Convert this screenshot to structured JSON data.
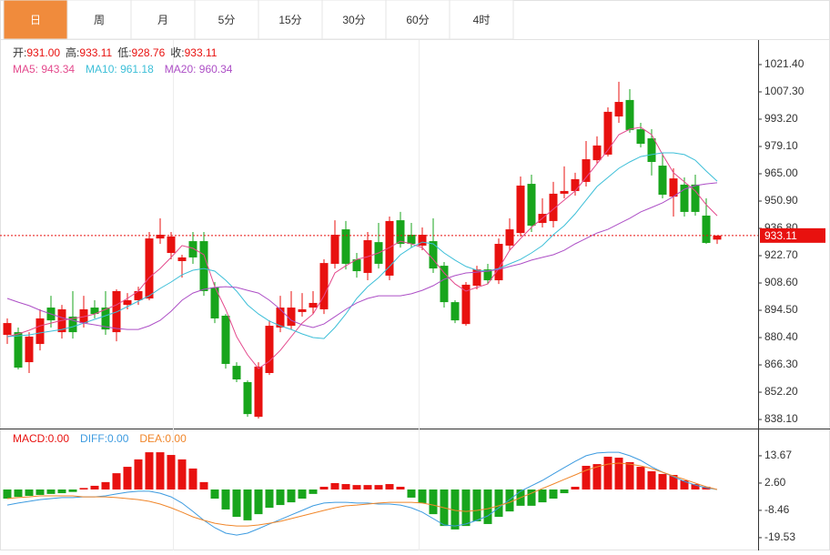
{
  "tabs": [
    "日",
    "周",
    "月",
    "5分",
    "15分",
    "30分",
    "60分",
    "4时"
  ],
  "active_tab": 0,
  "chart_data": [
    {
      "type": "candlestick",
      "ohlc_header": [
        {
          "label": "开:",
          "value": "931.00"
        },
        {
          "label": "高:",
          "value": "933.11"
        },
        {
          "label": "低:",
          "value": "928.76"
        },
        {
          "label": "收:",
          "value": "933.11"
        }
      ],
      "up_color": "#e8110f",
      "down_color": "#18a51c",
      "open": [
        881.8,
        883.2,
        867.7,
        877.1,
        895.9,
        883.2,
        891.2,
        887.9,
        895.9,
        895.9,
        883.2,
        897.3,
        899.7,
        900.6,
        931.6,
        924.1,
        919.9,
        930.2,
        930.2,
        906.3,
        891.7,
        865.8,
        857.4,
        839.5,
        862.1,
        885.6,
        886.5,
        893.6,
        895.9,
        895.0,
        918.5,
        936.3,
        920.8,
        913.8,
        929.7,
        912.4,
        941.0,
        933.5,
        927.9,
        930.2,
        917.5,
        898.7,
        887.4,
        907.2,
        915.6,
        910.0,
        927.9,
        934.4,
        959.8,
        939.6,
        940.6,
        954.7,
        956.1,
        960.8,
        972.0,
        974.9,
        994.6,
        1003.1,
        988.0,
        983.3,
        969.2,
        953.2,
        959.4,
        959.4,
        943.4,
        931.0
      ],
      "high": [
        890.3,
        885.6,
        883.2,
        895.0,
        902.0,
        897.3,
        904.4,
        902.0,
        899.7,
        904.4,
        905.3,
        903.4,
        906.7,
        934.9,
        942.0,
        934.9,
        923.2,
        934.9,
        934.9,
        909.1,
        892.6,
        867.7,
        858.3,
        867.7,
        889.3,
        902.0,
        904.4,
        903.4,
        904.4,
        920.8,
        941.0,
        940.6,
        924.1,
        934.9,
        939.6,
        942.9,
        945.3,
        939.6,
        937.3,
        942.0,
        919.4,
        899.7,
        909.1,
        917.5,
        918.5,
        931.6,
        942.0,
        963.6,
        964.5,
        952.3,
        960.8,
        968.8,
        965.5,
        981.9,
        984.3,
        999.3,
        1012.5,
        1008.7,
        991.3,
        988.0,
        975.8,
        967.8,
        963.1,
        964.5,
        952.3,
        933.11
      ],
      "low": [
        877.1,
        864.0,
        862.1,
        873.8,
        885.6,
        879.9,
        879.9,
        885.6,
        890.3,
        881.8,
        878.5,
        895.0,
        897.3,
        899.7,
        928.8,
        920.8,
        911.4,
        918.5,
        902.0,
        887.9,
        864.4,
        857.4,
        839.5,
        838.6,
        861.1,
        883.2,
        884.6,
        891.2,
        892.6,
        892.6,
        916.1,
        915.6,
        911.4,
        910.0,
        916.1,
        910.0,
        926.9,
        926.9,
        925.5,
        913.8,
        895.9,
        887.9,
        886.5,
        905.3,
        908.1,
        908.1,
        925.5,
        932.6,
        934.9,
        937.3,
        937.3,
        952.3,
        953.7,
        958.4,
        970.2,
        973.9,
        991.3,
        986.2,
        978.6,
        964.1,
        952.3,
        942.9,
        942.9,
        943.4,
        928.8,
        928.76
      ],
      "close": [
        887.9,
        864.9,
        880.9,
        890.3,
        889.3,
        895.0,
        883.2,
        895.0,
        892.6,
        884.6,
        904.4,
        899.7,
        904.4,
        931.6,
        933.5,
        932.6,
        921.8,
        921.8,
        904.4,
        890.3,
        866.8,
        858.8,
        840.9,
        865.4,
        886.5,
        895.9,
        895.9,
        895.0,
        898.3,
        918.9,
        933.5,
        918.5,
        914.7,
        930.7,
        918.5,
        940.6,
        928.8,
        928.8,
        933.5,
        916.1,
        898.7,
        889.3,
        907.7,
        915.6,
        910.0,
        928.8,
        936.3,
        958.9,
        938.2,
        944.3,
        954.7,
        956.1,
        962.2,
        972.5,
        979.6,
        997.0,
        1002.1,
        987.6,
        980.5,
        971.1,
        954.2,
        962.6,
        945.3,
        945.3,
        929.3,
        933.11
      ],
      "series": [
        {
          "name": "MA5: 943.34",
          "color": "#e44a8d",
          "values": [
            880.9,
            882.3,
            884.2,
            886.5,
            887.9,
            889.3,
            890.3,
            891.2,
            892.6,
            895.0,
            897.3,
            900.6,
            904.4,
            911.4,
            916.1,
            921.8,
            927.9,
            926.5,
            923.2,
            906.7,
            895.0,
            880.9,
            871.5,
            864.4,
            868.2,
            873.8,
            880.9,
            887.9,
            892.6,
            902.0,
            913.8,
            917.5,
            920.8,
            922.2,
            924.1,
            926.9,
            930.2,
            928.8,
            926.9,
            920.8,
            913.8,
            908.1,
            904.4,
            906.3,
            908.1,
            916.1,
            925.5,
            931.6,
            937.3,
            942.0,
            946.7,
            951.4,
            956.1,
            963.1,
            970.2,
            977.2,
            985.2,
            988.0,
            989.0,
            985.2,
            974.9,
            965.5,
            960.8,
            956.1,
            949.0,
            943.34
          ]
        },
        {
          "name": "MA10: 961.18",
          "color": "#3dbfd8",
          "values": [
            880.9,
            881.3,
            881.8,
            882.8,
            883.7,
            884.6,
            886.0,
            887.9,
            889.8,
            891.7,
            893.6,
            896.4,
            899.2,
            902.0,
            905.8,
            909.1,
            912.8,
            915.2,
            916.1,
            914.7,
            910.0,
            904.4,
            897.3,
            892.6,
            888.9,
            886.5,
            884.6,
            882.3,
            880.4,
            879.9,
            885.6,
            892.6,
            900.6,
            906.7,
            911.4,
            917.1,
            923.2,
            926.9,
            929.7,
            928.8,
            924.1,
            920.4,
            917.1,
            915.2,
            914.7,
            916.1,
            918.5,
            920.8,
            924.1,
            927.9,
            933.5,
            938.2,
            944.3,
            951.4,
            958.4,
            963.1,
            967.8,
            971.1,
            973.9,
            974.9,
            975.8,
            975.8,
            974.9,
            972.0,
            966.4,
            961.18
          ]
        },
        {
          "name": "MA20: 960.34",
          "color": "#ad4fc6",
          "values": [
            900.6,
            898.7,
            896.9,
            894.5,
            892.6,
            890.7,
            889.3,
            887.9,
            887.0,
            886.0,
            885.1,
            884.6,
            884.6,
            886.5,
            889.3,
            894.0,
            899.7,
            903.4,
            905.3,
            906.3,
            906.7,
            906.3,
            904.8,
            903.4,
            899.7,
            895.0,
            889.3,
            887.0,
            885.6,
            887.4,
            891.2,
            895.0,
            898.3,
            900.6,
            902.0,
            902.0,
            902.0,
            903.0,
            904.8,
            907.2,
            910.5,
            912.4,
            913.8,
            914.2,
            914.7,
            915.6,
            917.1,
            918.5,
            920.4,
            921.8,
            923.2,
            925.5,
            928.8,
            931.6,
            934.4,
            936.3,
            939.2,
            942.0,
            945.3,
            947.6,
            950.0,
            953.2,
            957.0,
            958.9,
            959.8,
            960.34
          ]
        }
      ],
      "last_price": 933.11,
      "ylim": [
        833.9,
        1033.6
      ],
      "yticks": [
        {
          "value": 1021.4,
          "label": "1021.40"
        },
        {
          "value": 1007.3,
          "label": "1007.30"
        },
        {
          "value": 993.2,
          "label": "993.20"
        },
        {
          "value": 979.1,
          "label": "979.10"
        },
        {
          "value": 965,
          "label": "965.00"
        },
        {
          "value": 950.9,
          "label": "950.90"
        },
        {
          "value": 936.8,
          "label": "936.80"
        },
        {
          "value": 922.7,
          "label": "922.70"
        },
        {
          "value": 908.6,
          "label": "908.60"
        },
        {
          "value": 894.5,
          "label": "894.50"
        },
        {
          "value": 880.4,
          "label": "880.40"
        },
        {
          "value": 866.3,
          "label": "866.30"
        },
        {
          "value": 852.2,
          "label": "852.20"
        },
        {
          "value": 838.1,
          "label": "838.10"
        }
      ]
    },
    {
      "type": "macd",
      "bars": {
        "name": "MACD:0.00",
        "up_color": "#e8110f",
        "down_color": "#18a51c",
        "values": [
          -3.7,
          -3.0,
          -2.6,
          -2.2,
          -1.8,
          -1.5,
          -1.0,
          0.6,
          1.5,
          3.0,
          6.6,
          9.2,
          12.2,
          15.1,
          15.1,
          14.0,
          12.2,
          8.5,
          3.0,
          -3.7,
          -8.1,
          -11.1,
          -12.5,
          -10.0,
          -7.4,
          -6.3,
          -5.2,
          -3.7,
          -1.8,
          1.1,
          2.6,
          2.2,
          1.8,
          1.8,
          1.8,
          2.2,
          1.1,
          -3.3,
          -5.5,
          -10.0,
          -14.8,
          -16.2,
          -14.8,
          -12.9,
          -14.0,
          -11.1,
          -8.9,
          -6.6,
          -6.6,
          -5.2,
          -3.7,
          -1.5,
          1.1,
          9.6,
          10.3,
          13.3,
          12.9,
          11.1,
          9.2,
          7.4,
          6.3,
          5.9,
          3.7,
          2.2,
          1.1,
          0.0
        ]
      },
      "series": [
        {
          "name": "DIFF:0.00",
          "color": "#3d9be0",
          "values": [
            -6.3,
            -5.5,
            -4.8,
            -4.1,
            -3.7,
            -3.3,
            -3.3,
            -3.0,
            -3.0,
            -2.6,
            -1.8,
            -1.1,
            -0.7,
            -0.7,
            -1.5,
            -3.0,
            -5.5,
            -8.9,
            -12.5,
            -15.5,
            -17.7,
            -18.5,
            -17.7,
            -15.9,
            -14.0,
            -12.2,
            -10.3,
            -8.5,
            -6.6,
            -5.5,
            -5.2,
            -5.2,
            -5.5,
            -5.5,
            -5.9,
            -5.9,
            -6.3,
            -7.4,
            -9.2,
            -11.8,
            -14.4,
            -14.8,
            -14.0,
            -12.5,
            -10.7,
            -7.4,
            -4.1,
            -0.7,
            1.5,
            3.7,
            6.3,
            8.9,
            11.4,
            13.7,
            14.8,
            15.1,
            15.1,
            13.7,
            11.8,
            9.2,
            7.0,
            5.2,
            3.3,
            1.8,
            0.7,
            0.0
          ]
        },
        {
          "name": "DEA:0.00",
          "color": "#f0862a",
          "values": [
            -3.7,
            -3.3,
            -3.0,
            -2.6,
            -2.6,
            -2.6,
            -2.6,
            -3.0,
            -3.0,
            -3.0,
            -3.3,
            -3.7,
            -4.1,
            -4.8,
            -5.9,
            -7.4,
            -9.2,
            -11.1,
            -12.5,
            -13.7,
            -14.4,
            -14.8,
            -14.8,
            -14.4,
            -13.7,
            -12.9,
            -11.8,
            -10.7,
            -9.6,
            -8.5,
            -7.4,
            -6.6,
            -6.3,
            -5.9,
            -5.5,
            -5.2,
            -5.2,
            -5.2,
            -5.5,
            -6.3,
            -7.4,
            -8.5,
            -8.9,
            -8.5,
            -7.8,
            -6.6,
            -5.2,
            -3.3,
            -1.5,
            0.4,
            2.2,
            4.1,
            5.9,
            7.8,
            9.2,
            10.3,
            10.7,
            10.3,
            9.6,
            8.5,
            7.0,
            5.5,
            4.1,
            2.6,
            1.1,
            0.0
          ]
        }
      ],
      "ylim": [
        -24.35,
        24.35
      ],
      "yticks": [
        13.67,
        {
          "value": 2.6,
          "label": "2.60"
        },
        -8.46,
        -19.53
      ]
    }
  ]
}
